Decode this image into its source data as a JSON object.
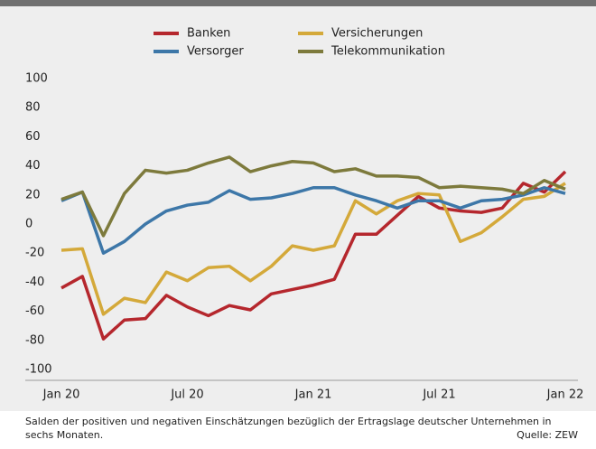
{
  "chart_data": {
    "type": "line",
    "categories": [
      "Jan 20",
      null,
      null,
      null,
      null,
      null,
      "Jul 20",
      null,
      null,
      null,
      null,
      null,
      "Jan 21",
      null,
      null,
      null,
      null,
      null,
      "Jul 21",
      null,
      null,
      null,
      null,
      null,
      "Jan 22"
    ],
    "series": [
      {
        "name": "Banken",
        "color": "#b5272d",
        "values": [
          -44,
          -36,
          -79,
          -66,
          -65,
          -49,
          -57,
          -63,
          -56,
          -59,
          -48,
          -45,
          -42,
          -38,
          -7,
          -7,
          6,
          19,
          11,
          9,
          8,
          11,
          28,
          22,
          36
        ]
      },
      {
        "name": "Versicherungen",
        "color": "#d4a93a",
        "values": [
          -18,
          -17,
          -62,
          -51,
          -54,
          -33,
          -39,
          -30,
          -29,
          -39,
          -29,
          -15,
          -18,
          -15,
          16,
          7,
          16,
          21,
          20,
          -12,
          -6,
          5,
          17,
          19,
          28
        ]
      },
      {
        "name": "Versorger",
        "color": "#3d77a8",
        "values": [
          16,
          22,
          -20,
          -12,
          0,
          9,
          13,
          15,
          23,
          17,
          18,
          21,
          25,
          25,
          20,
          16,
          11,
          16,
          16,
          11,
          16,
          17,
          20,
          25,
          21
        ]
      },
      {
        "name": "Telekommunikation",
        "color": "#7d7a3c",
        "values": [
          17,
          22,
          -8,
          21,
          37,
          35,
          37,
          42,
          46,
          36,
          40,
          43,
          42,
          36,
          38,
          33,
          33,
          32,
          25,
          26,
          25,
          24,
          21,
          30,
          24
        ]
      }
    ],
    "ylim": [
      -100,
      100
    ],
    "yticks": [
      -100,
      -80,
      -60,
      -40,
      -20,
      0,
      20,
      40,
      60,
      80,
      100
    ],
    "grid": false,
    "footnote": "Salden der positiven und negativen Einschätzungen bezüglich der Ertragslage deutscher Unternehmen in sechs Monaten.",
    "source": "Quelle: ZEW"
  }
}
